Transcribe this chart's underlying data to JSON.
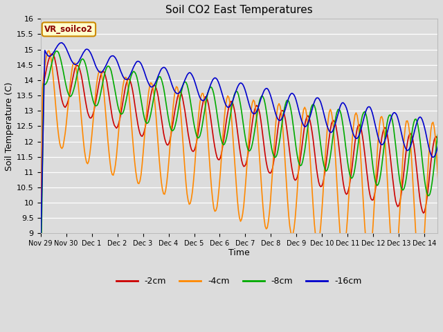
{
  "title": "Soil CO2 East Temperatures",
  "xlabel": "Time",
  "ylabel": "Soil Temperature (C)",
  "ylim": [
    9.0,
    16.0
  ],
  "yticks": [
    9.0,
    9.5,
    10.0,
    10.5,
    11.0,
    11.5,
    12.0,
    12.5,
    13.0,
    13.5,
    14.0,
    14.5,
    15.0,
    15.5,
    16.0
  ],
  "series_labels": [
    "-2cm",
    "-4cm",
    "-8cm",
    "-16cm"
  ],
  "series_colors": [
    "#cc0000",
    "#ff8800",
    "#00aa00",
    "#0000cc"
  ],
  "legend_label": "VR_soilco2",
  "background_color": "#dcdcdc",
  "figsize": [
    6.4,
    4.8
  ],
  "dpi": 100
}
